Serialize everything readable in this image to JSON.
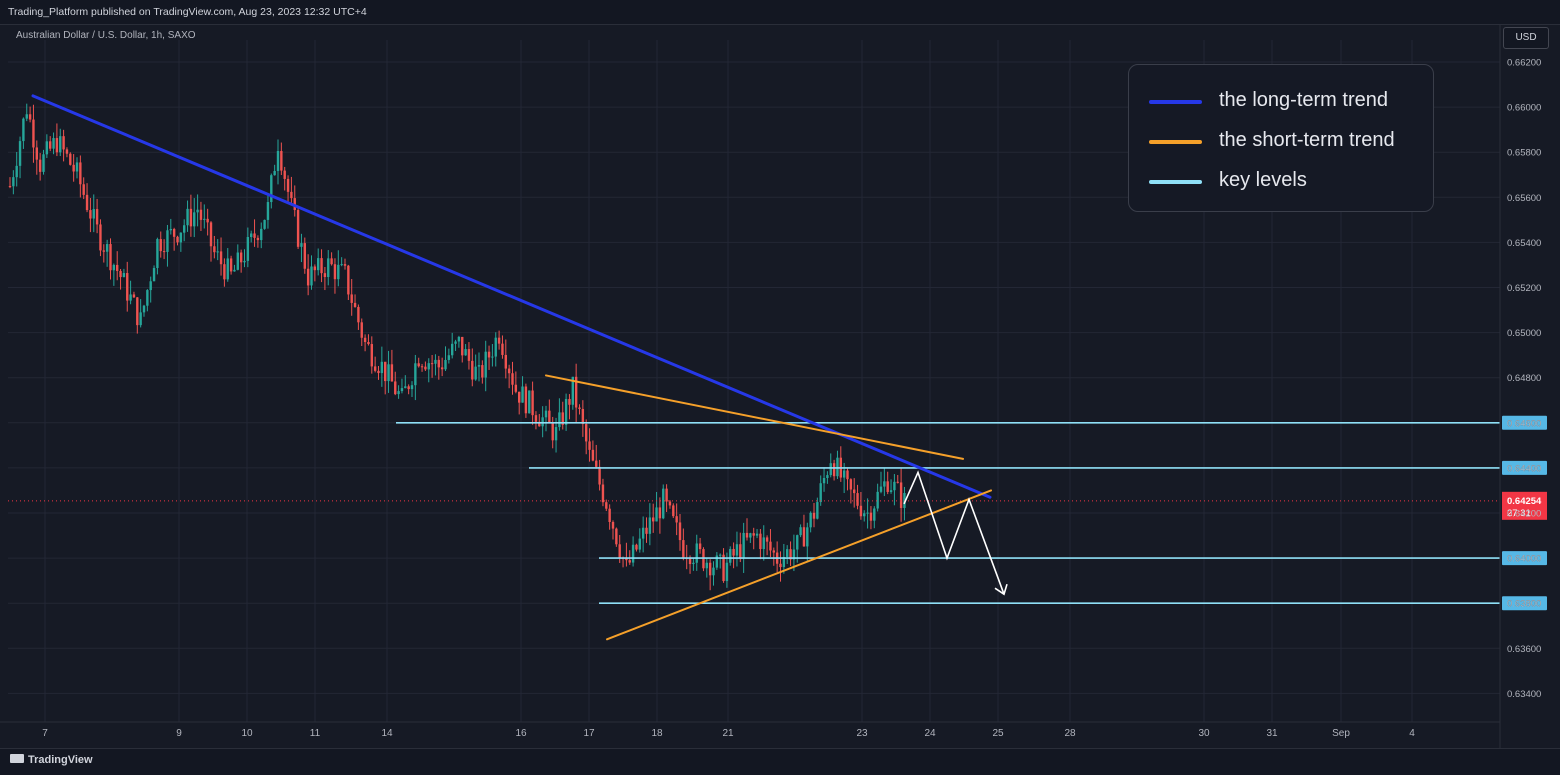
{
  "header": {
    "published": "Trading_Platform published on TradingView.com, Aug 23, 2023 12:32 UTC+4",
    "symbol": "Australian Dollar / U.S. Dollar, 1h, SAXO",
    "currency": "USD"
  },
  "legend": [
    {
      "label": "the long-term trend",
      "color": "#2638e8"
    },
    {
      "label": "the short-term trend",
      "color": "#f5a02a"
    },
    {
      "label": "key levels",
      "color": "#8fe0f7"
    }
  ],
  "footer": {
    "brand": "TradingView"
  },
  "colors": {
    "up": "#26a69a",
    "down": "#ef5350",
    "background": "#161a25",
    "grid": "#232735",
    "long_trend": "#2638e8",
    "short_trend": "#f5a02a",
    "key_level": "#8fe0f7",
    "key_label_bg": "#56b8e6",
    "price_label_bg": "#f23645",
    "projection": "#ffffff"
  },
  "chart_data": {
    "type": "candlestick",
    "title": "Australian Dollar / U.S. Dollar, 1h, SAXO",
    "ylim": [
      0.6332,
      0.6624
    ],
    "y_ticks": [
      0.662,
      0.66,
      0.658,
      0.656,
      0.654,
      0.652,
      0.65,
      0.648,
      0.646,
      0.644,
      0.642,
      0.64,
      0.638,
      0.636,
      0.634
    ],
    "x_ticks": [
      "7",
      "9",
      "10",
      "11",
      "14",
      "16",
      "17",
      "18",
      "21",
      "23",
      "24",
      "25",
      "28",
      "30",
      "31",
      "Sep",
      "4"
    ],
    "last_price": {
      "value": 0.64254,
      "label": "0.64254",
      "countdown": "27:31"
    },
    "key_levels": [
      {
        "value": 0.646,
        "label": "0.64600",
        "from": "14"
      },
      {
        "value": 0.644,
        "label": "0.64400",
        "from": "16"
      },
      {
        "value": 0.64,
        "label": "0.64000",
        "from": "17"
      },
      {
        "value": 0.638,
        "label": "0.63800",
        "from": "17"
      }
    ],
    "trendlines": [
      {
        "name": "the long-term trend",
        "points": [
          [
            "7",
            0.6605
          ],
          [
            "24",
            0.6427
          ]
        ]
      },
      {
        "name": "the short-term trend",
        "points": [
          [
            "16",
            0.6481
          ],
          [
            "24",
            0.6444
          ]
        ]
      },
      {
        "name": "the short-term trend",
        "points": [
          [
            "17",
            0.6364
          ],
          [
            "24",
            0.643
          ]
        ]
      }
    ],
    "projection_path": [
      0.6424,
      0.6438,
      0.64,
      0.6426,
      0.6384
    ],
    "close_path": [
      [
        0,
        0.6565
      ],
      [
        5,
        0.66
      ],
      [
        9,
        0.6575
      ],
      [
        14,
        0.6585
      ],
      [
        20,
        0.657
      ],
      [
        26,
        0.6545
      ],
      [
        33,
        0.6525
      ],
      [
        39,
        0.6505
      ],
      [
        44,
        0.654
      ],
      [
        50,
        0.6545
      ],
      [
        56,
        0.6555
      ],
      [
        61,
        0.6535
      ],
      [
        66,
        0.6525
      ],
      [
        72,
        0.654
      ],
      [
        77,
        0.6555
      ],
      [
        80,
        0.6585
      ],
      [
        84,
        0.6555
      ],
      [
        89,
        0.6525
      ],
      [
        95,
        0.653
      ],
      [
        100,
        0.6525
      ],
      [
        106,
        0.6495
      ],
      [
        111,
        0.6485
      ],
      [
        117,
        0.647
      ],
      [
        122,
        0.649
      ],
      [
        128,
        0.6485
      ],
      [
        134,
        0.6495
      ],
      [
        140,
        0.648
      ],
      [
        146,
        0.65
      ],
      [
        151,
        0.6475
      ],
      [
        157,
        0.6465
      ],
      [
        163,
        0.6455
      ],
      [
        168,
        0.6475
      ],
      [
        173,
        0.6445
      ],
      [
        178,
        0.6425
      ],
      [
        184,
        0.6395
      ],
      [
        189,
        0.641
      ],
      [
        195,
        0.6425
      ],
      [
        201,
        0.6405
      ],
      [
        207,
        0.64
      ],
      [
        213,
        0.6395
      ],
      [
        218,
        0.6405
      ],
      [
        223,
        0.641
      ],
      [
        229,
        0.64
      ],
      [
        235,
        0.6405
      ],
      [
        240,
        0.642
      ],
      [
        245,
        0.6445
      ],
      [
        250,
        0.643
      ],
      [
        256,
        0.642
      ],
      [
        262,
        0.6435
      ],
      [
        267,
        0.6425
      ]
    ]
  }
}
